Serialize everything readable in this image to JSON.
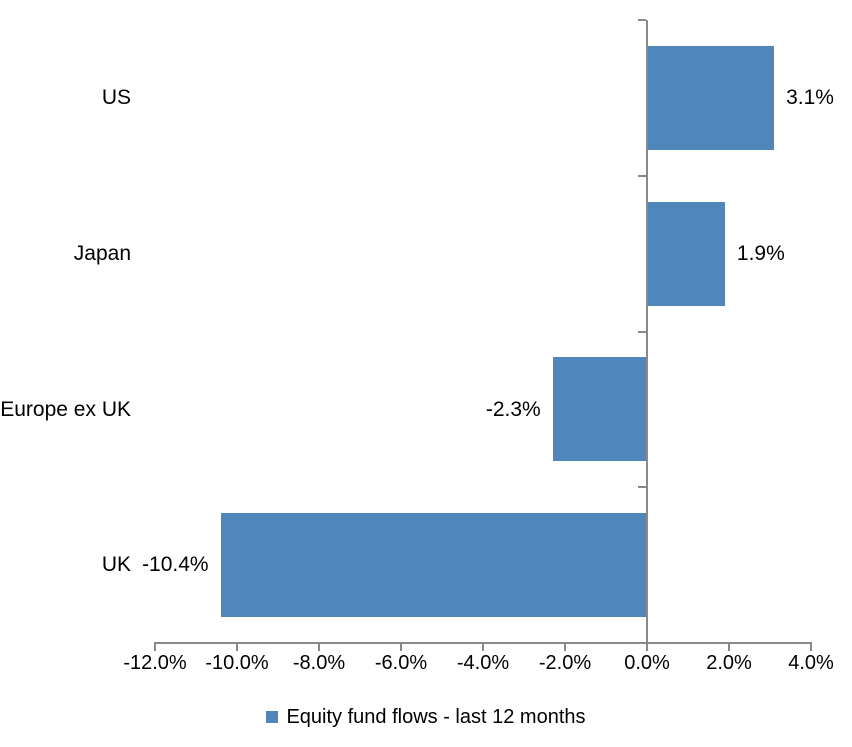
{
  "chart_data": {
    "type": "bar",
    "orientation": "horizontal",
    "title": "",
    "xlabel": "",
    "ylabel": "",
    "grid": false,
    "categories": [
      "US",
      "Japan",
      "Europe ex UK",
      "UK"
    ],
    "series": [
      {
        "name": "Equity fund flows - last 12 months",
        "values": [
          3.1,
          1.9,
          -2.3,
          -10.4
        ]
      }
    ],
    "data_labels": [
      "3.1%",
      "1.9%",
      "-2.3%",
      "-10.4%"
    ],
    "xlim": [
      -12,
      4
    ],
    "x_tick_step": 2,
    "x_ticks": [
      {
        "value": -12,
        "label": "-12.0%"
      },
      {
        "value": -10,
        "label": "-10.0%"
      },
      {
        "value": -8,
        "label": "-8.0%"
      },
      {
        "value": -6,
        "label": "-6.0%"
      },
      {
        "value": -4,
        "label": "-4.0%"
      },
      {
        "value": -2,
        "label": "-2.0%"
      },
      {
        "value": 0,
        "label": "0.0%"
      },
      {
        "value": 2,
        "label": "2.0%"
      },
      {
        "value": 4,
        "label": "4.0%"
      }
    ],
    "legend": {
      "position": "bottom",
      "entries": [
        {
          "label": "Equity fund flows - last 12 months",
          "color": "#4F87BC"
        }
      ]
    },
    "colors": {
      "bar": "#4F87BC",
      "axis": "#898989",
      "text": "#000000",
      "background": "#FFFFFF"
    }
  }
}
